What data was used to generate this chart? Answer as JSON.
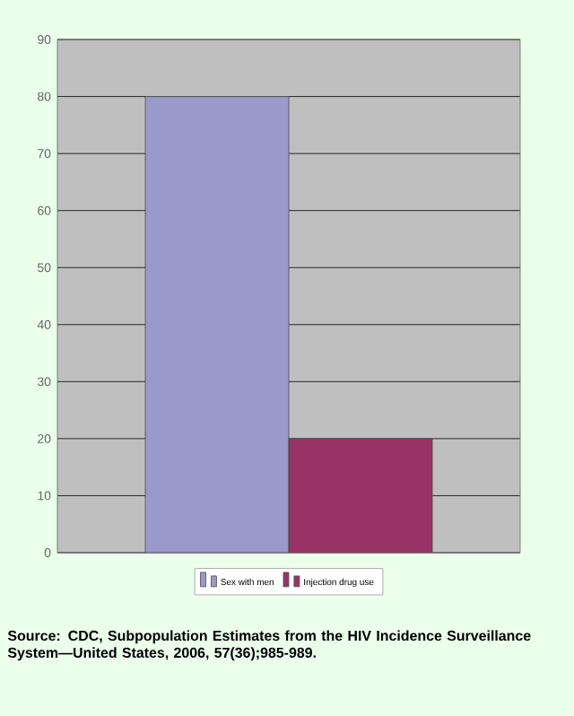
{
  "chart_data": {
    "type": "bar",
    "categories": [
      null
    ],
    "series": [
      {
        "name": "Sex with men",
        "color": "#9999cc",
        "values": [
          80
        ]
      },
      {
        "name": "Injection drug use",
        "color": "#993366",
        "values": [
          20
        ]
      }
    ],
    "ylim": [
      0,
      90
    ],
    "yticks": [
      0,
      10,
      20,
      30,
      40,
      50,
      60,
      70,
      80,
      90
    ],
    "grid": "y",
    "legend": "bottom",
    "annotations": [
      "Source: CDC, Subpopulation Estimates from the HIV Incidence Surveillance System—United States, 2006, 57(36);985-989."
    ]
  }
}
